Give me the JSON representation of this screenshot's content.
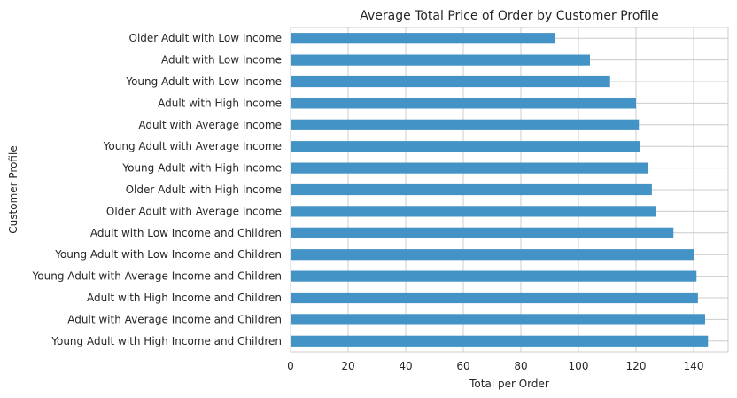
{
  "chart_data": {
    "type": "bar",
    "orientation": "horizontal",
    "title": "Average Total Price of Order by Customer Profile",
    "xlabel": "Total per Order",
    "ylabel": "Customer Profile",
    "xlim": [
      0,
      152
    ],
    "xticks": [
      0,
      20,
      40,
      60,
      80,
      100,
      120,
      140
    ],
    "grid": true,
    "bar_color": "#4393c6",
    "categories": [
      "Older Adult with Low Income",
      "Adult with Low Income",
      "Young Adult with Low Income",
      "Adult with High Income",
      "Adult with Average Income",
      "Young Adult with Average Income",
      "Young Adult with High Income",
      "Older Adult with High Income",
      "Older Adult with Average Income",
      "Adult with Low Income and Children",
      "Young Adult with Low Income and Children",
      "Young Adult with Average Income and Children",
      "Adult with High Income and Children",
      "Adult with Average Income and Children",
      "Young Adult with High Income and Children"
    ],
    "values": [
      92,
      104,
      111,
      120,
      121,
      121.5,
      124,
      125.5,
      127,
      133,
      140,
      141,
      141.5,
      144,
      145
    ]
  }
}
